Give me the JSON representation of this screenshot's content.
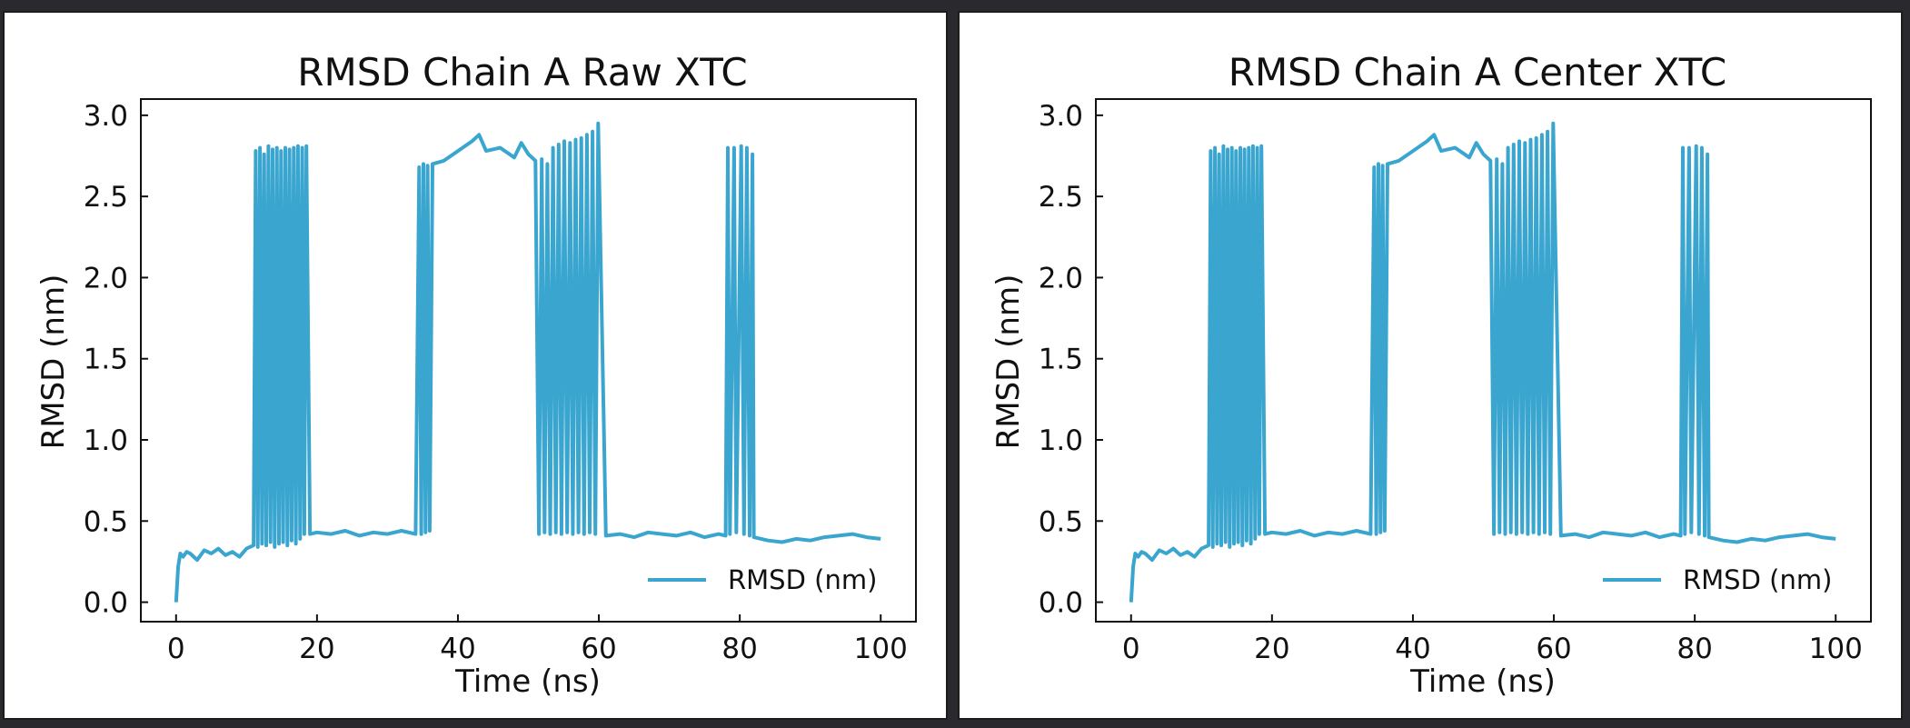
{
  "chart_data": [
    {
      "type": "line",
      "title": "RMSD Chain A Raw XTC",
      "xlabel": "Time (ns)",
      "ylabel": "RMSD (nm)",
      "xlim": [
        -5,
        105
      ],
      "ylim": [
        -0.12,
        3.1
      ],
      "xticks": [
        0,
        20,
        40,
        60,
        80,
        100
      ],
      "yticks": [
        0.0,
        0.5,
        1.0,
        1.5,
        2.0,
        2.5,
        3.0
      ],
      "xtick_labels": [
        "0",
        "20",
        "40",
        "60",
        "80",
        "100"
      ],
      "ytick_labels": [
        "0.0",
        "0.5",
        "1.0",
        "1.5",
        "2.0",
        "2.5",
        "3.0"
      ],
      "legend": {
        "label": "RMSD (nm)",
        "position": "lower-right"
      },
      "color": "#3aa6d0",
      "series": [
        {
          "name": "RMSD (nm)",
          "x": [
            0,
            0.3,
            0.6,
            1,
            1.5,
            2,
            3,
            4,
            5,
            6,
            7,
            8,
            9,
            10,
            11,
            11.3,
            11.6,
            11.9,
            12.2,
            12.5,
            12.8,
            13.1,
            13.4,
            13.7,
            14.0,
            14.3,
            14.6,
            14.9,
            15.2,
            15.5,
            15.8,
            16.1,
            16.4,
            16.7,
            17.0,
            17.3,
            17.6,
            17.9,
            18.2,
            18.5,
            19,
            20,
            22,
            24,
            26,
            28,
            30,
            32,
            34,
            34.5,
            34.8,
            35.1,
            35.4,
            35.7,
            36.0,
            36.4,
            38,
            40,
            42,
            43,
            44,
            46,
            48,
            49,
            50,
            51,
            51.5,
            51.9,
            52.3,
            52.7,
            53.1,
            53.5,
            53.9,
            54.3,
            54.7,
            55.1,
            55.5,
            55.9,
            56.3,
            56.7,
            57.1,
            57.5,
            57.9,
            58.3,
            58.7,
            59.1,
            59.5,
            59.9,
            61,
            63,
            65,
            67,
            69,
            71,
            73,
            75,
            77,
            78,
            78.3,
            78.6,
            79.2,
            79.5,
            80.2,
            80.6,
            81.0,
            81.4,
            81.8,
            82,
            84,
            86,
            88,
            90,
            92,
            94,
            96,
            98,
            100
          ],
          "values": [
            0.0,
            0.22,
            0.3,
            0.28,
            0.31,
            0.3,
            0.26,
            0.32,
            0.3,
            0.33,
            0.29,
            0.31,
            0.28,
            0.33,
            0.35,
            2.78,
            0.34,
            2.8,
            0.36,
            2.76,
            0.35,
            2.81,
            0.37,
            2.79,
            0.34,
            2.8,
            0.36,
            2.78,
            0.37,
            2.8,
            0.35,
            2.79,
            0.38,
            2.8,
            0.36,
            2.81,
            0.39,
            2.8,
            0.42,
            2.81,
            0.42,
            0.43,
            0.42,
            0.44,
            0.41,
            0.43,
            0.42,
            0.44,
            0.42,
            2.68,
            0.42,
            2.7,
            0.43,
            2.69,
            0.44,
            2.7,
            2.72,
            2.78,
            2.84,
            2.88,
            2.78,
            2.8,
            2.74,
            2.83,
            2.76,
            2.72,
            0.42,
            2.73,
            0.43,
            2.7,
            0.42,
            2.8,
            0.43,
            2.82,
            0.42,
            2.84,
            0.43,
            2.83,
            0.42,
            2.85,
            0.43,
            2.86,
            0.42,
            2.88,
            0.43,
            2.9,
            0.42,
            2.95,
            0.41,
            0.42,
            0.4,
            0.43,
            0.42,
            0.41,
            0.43,
            0.4,
            0.42,
            0.41,
            2.8,
            0.42,
            2.8,
            0.43,
            2.81,
            0.42,
            2.8,
            0.41,
            2.76,
            0.4,
            0.38,
            0.37,
            0.39,
            0.38,
            0.4,
            0.41,
            0.42,
            0.4,
            0.39
          ]
        }
      ]
    },
    {
      "type": "line",
      "title": "RMSD Chain A Center XTC",
      "xlabel": "Time (ns)",
      "ylabel": "RMSD (nm)",
      "xlim": [
        -5,
        105
      ],
      "ylim": [
        -0.12,
        3.1
      ],
      "xticks": [
        0,
        20,
        40,
        60,
        80,
        100
      ],
      "yticks": [
        0.0,
        0.5,
        1.0,
        1.5,
        2.0,
        2.5,
        3.0
      ],
      "xtick_labels": [
        "0",
        "20",
        "40",
        "60",
        "80",
        "100"
      ],
      "ytick_labels": [
        "0.0",
        "0.5",
        "1.0",
        "1.5",
        "2.0",
        "2.5",
        "3.0"
      ],
      "legend": {
        "label": "RMSD (nm)",
        "position": "lower-right"
      },
      "color": "#3aa6d0",
      "series": [
        {
          "name": "RMSD (nm)",
          "x": [
            0,
            0.3,
            0.6,
            1,
            1.5,
            2,
            3,
            4,
            5,
            6,
            7,
            8,
            9,
            10,
            11,
            11.3,
            11.6,
            11.9,
            12.2,
            12.5,
            12.8,
            13.1,
            13.4,
            13.7,
            14.0,
            14.3,
            14.6,
            14.9,
            15.2,
            15.5,
            15.8,
            16.1,
            16.4,
            16.7,
            17.0,
            17.3,
            17.6,
            17.9,
            18.2,
            18.5,
            19,
            20,
            22,
            24,
            26,
            28,
            30,
            32,
            34,
            34.5,
            34.8,
            35.1,
            35.4,
            35.7,
            36.0,
            36.4,
            38,
            40,
            42,
            43,
            44,
            46,
            48,
            49,
            50,
            51,
            51.5,
            51.9,
            52.3,
            52.7,
            53.1,
            53.5,
            53.9,
            54.3,
            54.7,
            55.1,
            55.5,
            55.9,
            56.3,
            56.7,
            57.1,
            57.5,
            57.9,
            58.3,
            58.7,
            59.1,
            59.5,
            59.9,
            61,
            63,
            65,
            67,
            69,
            71,
            73,
            75,
            77,
            78,
            78.3,
            78.6,
            79.2,
            79.5,
            80.2,
            80.6,
            81.0,
            81.4,
            81.8,
            82,
            84,
            86,
            88,
            90,
            92,
            94,
            96,
            98,
            100
          ],
          "values": [
            0.0,
            0.22,
            0.3,
            0.28,
            0.31,
            0.3,
            0.26,
            0.32,
            0.3,
            0.33,
            0.29,
            0.31,
            0.28,
            0.33,
            0.35,
            2.78,
            0.34,
            2.8,
            0.36,
            2.76,
            0.35,
            2.81,
            0.37,
            2.79,
            0.34,
            2.8,
            0.36,
            2.78,
            0.37,
            2.8,
            0.35,
            2.79,
            0.38,
            2.8,
            0.36,
            2.81,
            0.39,
            2.8,
            0.42,
            2.81,
            0.42,
            0.43,
            0.42,
            0.44,
            0.41,
            0.43,
            0.42,
            0.44,
            0.42,
            2.68,
            0.42,
            2.7,
            0.43,
            2.69,
            0.44,
            2.7,
            2.72,
            2.78,
            2.84,
            2.88,
            2.78,
            2.8,
            2.74,
            2.83,
            2.76,
            2.72,
            0.42,
            2.73,
            0.43,
            2.7,
            0.42,
            2.8,
            0.43,
            2.82,
            0.42,
            2.84,
            0.43,
            2.83,
            0.42,
            2.85,
            0.43,
            2.86,
            0.42,
            2.88,
            0.43,
            2.9,
            0.42,
            2.95,
            0.41,
            0.42,
            0.4,
            0.43,
            0.42,
            0.41,
            0.43,
            0.4,
            0.42,
            0.41,
            2.8,
            0.42,
            2.8,
            0.43,
            2.81,
            0.42,
            2.8,
            0.41,
            2.76,
            0.4,
            0.38,
            0.37,
            0.39,
            0.38,
            0.4,
            0.41,
            0.42,
            0.4,
            0.39
          ]
        }
      ]
    }
  ]
}
